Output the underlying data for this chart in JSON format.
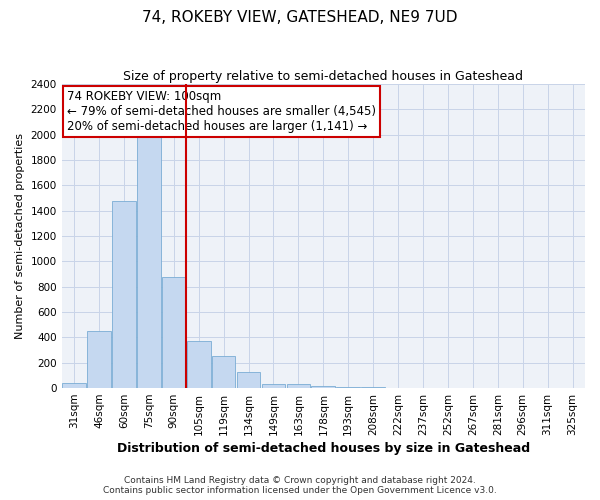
{
  "title": "74, ROKEBY VIEW, GATESHEAD, NE9 7UD",
  "subtitle": "Size of property relative to semi-detached houses in Gateshead",
  "xlabel": "Distribution of semi-detached houses by size in Gateshead",
  "ylabel": "Number of semi-detached properties",
  "categories": [
    "31sqm",
    "46sqm",
    "60sqm",
    "75sqm",
    "90sqm",
    "105sqm",
    "119sqm",
    "134sqm",
    "149sqm",
    "163sqm",
    "178sqm",
    "193sqm",
    "208sqm",
    "222sqm",
    "237sqm",
    "252sqm",
    "267sqm",
    "281sqm",
    "296sqm",
    "311sqm",
    "325sqm"
  ],
  "values": [
    40,
    450,
    1480,
    2000,
    880,
    375,
    255,
    125,
    30,
    30,
    20,
    10,
    5,
    3,
    3,
    0,
    0,
    0,
    0,
    0,
    0
  ],
  "bar_color": "#c5d8f0",
  "bar_edgecolor": "#7aadd4",
  "highlight_index": 5,
  "highlight_color": "#cc0000",
  "ylim": [
    0,
    2400
  ],
  "yticks": [
    0,
    200,
    400,
    600,
    800,
    1000,
    1200,
    1400,
    1600,
    1800,
    2000,
    2200,
    2400
  ],
  "annotation_title": "74 ROKEBY VIEW: 100sqm",
  "annotation_line1": "← 79% of semi-detached houses are smaller (4,545)",
  "annotation_line2": "20% of semi-detached houses are larger (1,141) →",
  "footer_line1": "Contains HM Land Registry data © Crown copyright and database right 2024.",
  "footer_line2": "Contains public sector information licensed under the Open Government Licence v3.0.",
  "bg_color": "#ffffff",
  "plot_bg_color": "#eef2f8",
  "grid_color": "#c8d4e8",
  "title_fontsize": 11,
  "subtitle_fontsize": 9,
  "xlabel_fontsize": 9,
  "ylabel_fontsize": 8,
  "tick_fontsize": 7.5,
  "footer_fontsize": 6.5,
  "ann_fontsize": 8.5
}
